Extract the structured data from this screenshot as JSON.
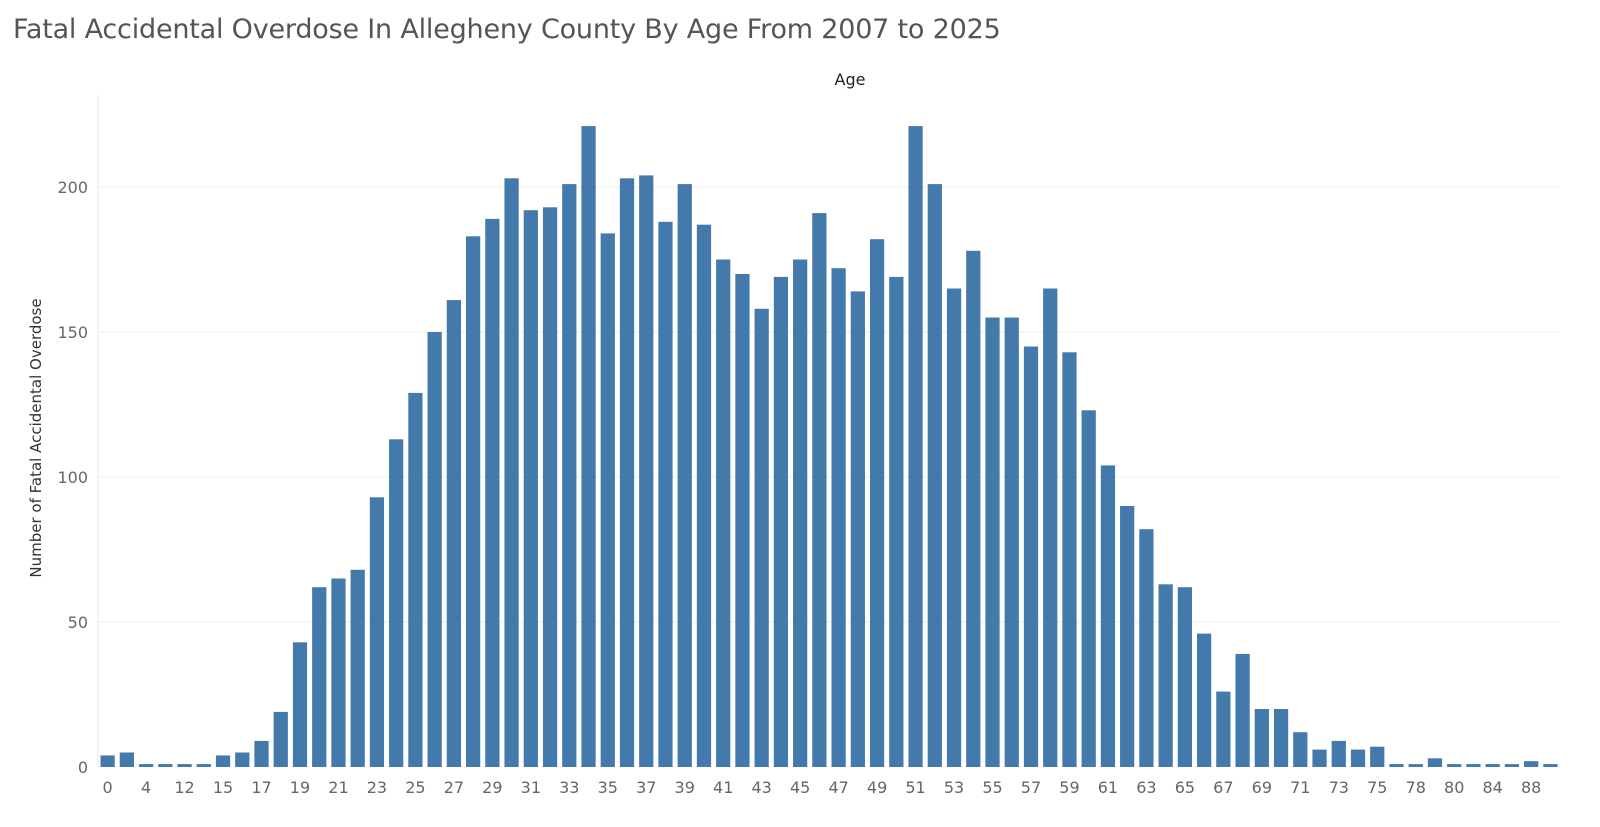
{
  "chart_data": {
    "type": "bar",
    "title": "Fatal Accidental Overdose In Allegheny County By Age From 2007 to 2025",
    "column_header": "Age",
    "ylabel": "Number of Fatal Accidental Overdose",
    "xlabel": "",
    "ylim": [
      0,
      225
    ],
    "yticks": [
      0,
      50,
      100,
      150,
      200
    ],
    "grid": true,
    "bar_color": "#4379ab",
    "categories": [
      "0",
      "3",
      "4",
      "5",
      "12",
      "14",
      "15",
      "16",
      "17",
      "18",
      "19",
      "20",
      "21",
      "22",
      "23",
      "24",
      "25",
      "26",
      "27",
      "28",
      "29",
      "30",
      "31",
      "32",
      "33",
      "34",
      "35",
      "36",
      "37",
      "38",
      "39",
      "40",
      "41",
      "42",
      "43",
      "44",
      "45",
      "46",
      "47",
      "48",
      "49",
      "50",
      "51",
      "52",
      "53",
      "54",
      "55",
      "56",
      "57",
      "58",
      "59",
      "60",
      "61",
      "62",
      "63",
      "64",
      "65",
      "66",
      "67",
      "68",
      "69",
      "70",
      "71",
      "72",
      "73",
      "74",
      "75",
      "76",
      "78",
      "79",
      "80",
      "81",
      "84",
      "85",
      "88",
      "91"
    ],
    "values": [
      4,
      5,
      1,
      1,
      1,
      1,
      4,
      5,
      9,
      19,
      43,
      62,
      65,
      68,
      93,
      113,
      129,
      150,
      161,
      183,
      189,
      203,
      192,
      193,
      201,
      221,
      184,
      203,
      204,
      188,
      201,
      187,
      175,
      170,
      158,
      169,
      175,
      191,
      172,
      164,
      182,
      169,
      221,
      201,
      165,
      178,
      155,
      155,
      145,
      165,
      143,
      123,
      104,
      90,
      82,
      63,
      62,
      46,
      26,
      39,
      20,
      20,
      12,
      6,
      9,
      6,
      7,
      1,
      1,
      3,
      1,
      1,
      1,
      1,
      2,
      1
    ],
    "tick_labels": [
      "0",
      "4",
      "12",
      "15",
      "17",
      "19",
      "21",
      "23",
      "25",
      "27",
      "29",
      "31",
      "33",
      "35",
      "37",
      "39",
      "41",
      "43",
      "45",
      "47",
      "49",
      "51",
      "53",
      "55",
      "57",
      "59",
      "61",
      "63",
      "65",
      "67",
      "69",
      "71",
      "73",
      "75",
      "78",
      "80",
      "84",
      "88"
    ]
  }
}
